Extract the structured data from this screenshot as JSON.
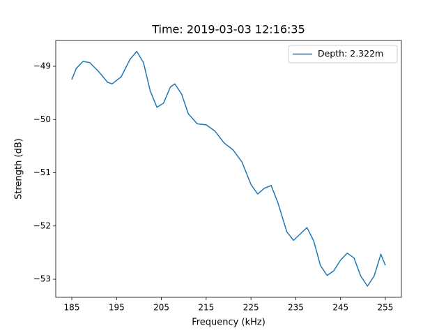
{
  "chart_data": {
    "type": "line",
    "title": "Time: 2019-03-03 12:16:35",
    "x_label": "Frequency (kHz)",
    "y_label": "Strength (dB)",
    "x": [
      185,
      186,
      187.5,
      189,
      191,
      193,
      194,
      196,
      198,
      199.5,
      201,
      202.5,
      204,
      205.5,
      207,
      208,
      209.5,
      211,
      213,
      215,
      217,
      219,
      221,
      223,
      225,
      226.5,
      228,
      229.5,
      231,
      233,
      234.5,
      236,
      237.5,
      239,
      240.5,
      242,
      243.5,
      245,
      246.5,
      248,
      249.5,
      251,
      252.5,
      254,
      255
    ],
    "series": [
      {
        "name": "Depth: 2.322m",
        "color": "#1f77b4",
        "values": [
          -49.25,
          -49.04,
          -48.91,
          -48.93,
          -49.1,
          -49.3,
          -49.33,
          -49.2,
          -48.87,
          -48.72,
          -48.93,
          -49.46,
          -49.77,
          -49.69,
          -49.39,
          -49.33,
          -49.52,
          -49.89,
          -50.08,
          -50.1,
          -50.22,
          -50.44,
          -50.57,
          -50.8,
          -51.22,
          -51.4,
          -51.29,
          -51.24,
          -51.56,
          -52.11,
          -52.27,
          -52.15,
          -52.03,
          -52.28,
          -52.74,
          -52.93,
          -52.84,
          -52.64,
          -52.51,
          -52.6,
          -52.94,
          -53.13,
          -52.94,
          -52.53,
          -52.74
        ]
      }
    ],
    "xlim": [
      181.42,
      258.58
    ],
    "ylim": [
      -53.34,
      -48.515
    ],
    "xticks": [
      185,
      195,
      205,
      215,
      225,
      235,
      245,
      255
    ],
    "yticks": [
      {
        "value": -49,
        "label": "−49"
      },
      {
        "value": -50,
        "label": "−50"
      },
      {
        "value": -51,
        "label": "−51"
      },
      {
        "value": -52,
        "label": "−52"
      },
      {
        "value": -53,
        "label": "−53"
      }
    ],
    "legend": "upper right"
  }
}
